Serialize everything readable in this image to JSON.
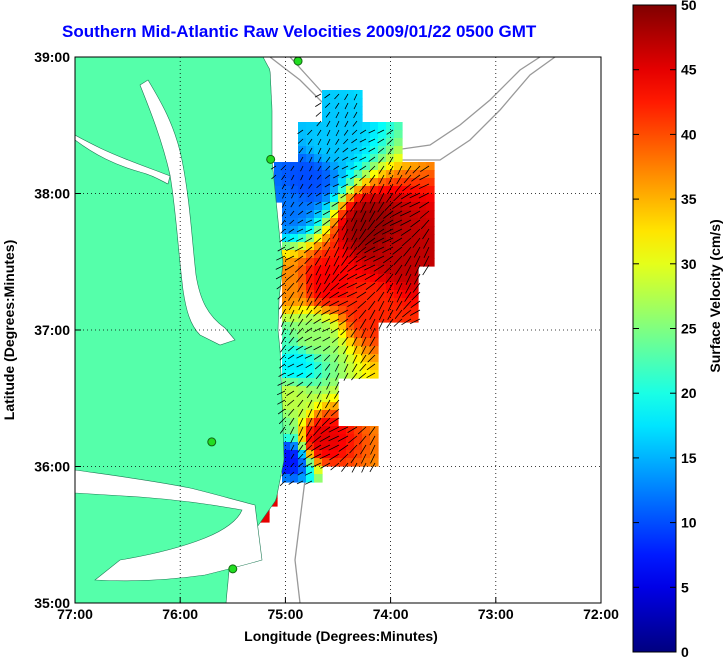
{
  "chart_data": {
    "type": "heatmap",
    "title": "Southern Mid-Atlantic Raw Velocities 2009/01/22 0500 GMT",
    "xlabel": "Longitude (Degrees:Minutes)",
    "ylabel": "Latitude (Degrees:Minutes)",
    "colorbar_label": "Surface Velocity (cm/s)",
    "xlim": [
      -77.0,
      -72.0
    ],
    "ylim": [
      35.0,
      39.0
    ],
    "x_ticks": [
      {
        "value": -77.0,
        "label": "77:00"
      },
      {
        "value": -76.0,
        "label": "76:00"
      },
      {
        "value": -75.0,
        "label": "75:00"
      },
      {
        "value": -74.0,
        "label": "74:00"
      },
      {
        "value": -73.0,
        "label": "73:00"
      },
      {
        "value": -72.0,
        "label": "72:00"
      }
    ],
    "y_ticks": [
      {
        "value": 35.0,
        "label": "35:00"
      },
      {
        "value": 36.0,
        "label": "36:00"
      },
      {
        "value": 37.0,
        "label": "37:00"
      },
      {
        "value": 38.0,
        "label": "38:00"
      },
      {
        "value": 39.0,
        "label": "39:00"
      }
    ],
    "colorbar_range": [
      0,
      50
    ],
    "colorbar_ticks": [
      {
        "value": 0,
        "label": "0"
      },
      {
        "value": 5,
        "label": "5"
      },
      {
        "value": 10,
        "label": "10"
      },
      {
        "value": 15,
        "label": "15"
      },
      {
        "value": 20,
        "label": "20"
      },
      {
        "value": 25,
        "label": "25"
      },
      {
        "value": 30,
        "label": "30"
      },
      {
        "value": 35,
        "label": "35"
      },
      {
        "value": 40,
        "label": "40"
      },
      {
        "value": 45,
        "label": "45"
      },
      {
        "value": 50,
        "label": "50"
      }
    ],
    "grid": true,
    "colormap": "jet",
    "land_color": "#55ffaa",
    "title_color": "#0000ff",
    "speed_field_centers": [
      {
        "lon": -74.2,
        "lat": 37.75,
        "speed": 49
      },
      {
        "lon": -73.9,
        "lat": 37.55,
        "speed": 47
      },
      {
        "lon": -74.6,
        "lat": 37.35,
        "speed": 44
      },
      {
        "lon": -74.2,
        "lat": 37.15,
        "speed": 42
      },
      {
        "lon": -75.05,
        "lat": 37.3,
        "speed": 37
      },
      {
        "lon": -74.8,
        "lat": 38.1,
        "speed": 10
      },
      {
        "lon": -75.0,
        "lat": 37.9,
        "speed": 12
      },
      {
        "lon": -74.6,
        "lat": 38.4,
        "speed": 16
      },
      {
        "lon": -74.75,
        "lat": 36.95,
        "speed": 26
      },
      {
        "lon": -75.1,
        "lat": 36.9,
        "speed": 22
      },
      {
        "lon": -74.95,
        "lat": 36.5,
        "speed": 28
      },
      {
        "lon": -75.1,
        "lat": 36.3,
        "speed": 24
      },
      {
        "lon": -74.65,
        "lat": 36.2,
        "speed": 45
      },
      {
        "lon": -75.0,
        "lat": 36.05,
        "speed": 7
      },
      {
        "lon": -74.9,
        "lat": 36.75,
        "speed": 18
      },
      {
        "lon": -75.25,
        "lat": 35.8,
        "speed": 45
      }
    ],
    "mean_flow_direction_deg": 225,
    "stations": [
      {
        "lon": -74.88,
        "lat": 38.97
      },
      {
        "lon": -75.14,
        "lat": 38.25
      },
      {
        "lon": -75.7,
        "lat": 36.18
      },
      {
        "lon": -75.5,
        "lat": 35.25
      }
    ]
  }
}
